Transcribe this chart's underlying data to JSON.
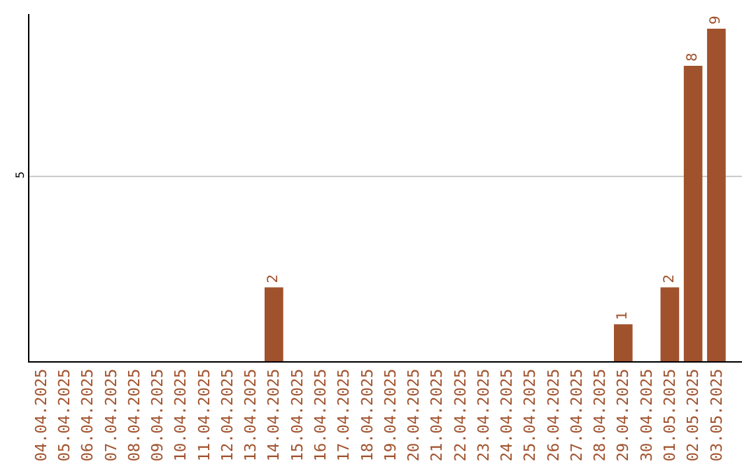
{
  "chart_data": {
    "type": "bar",
    "categories": [
      "04.04.2025",
      "05.04.2025",
      "06.04.2025",
      "07.04.2025",
      "08.04.2025",
      "09.04.2025",
      "10.04.2025",
      "11.04.2025",
      "12.04.2025",
      "13.04.2025",
      "14.04.2025",
      "15.04.2025",
      "16.04.2025",
      "17.04.2025",
      "18.04.2025",
      "19.04.2025",
      "20.04.2025",
      "21.04.2025",
      "22.04.2025",
      "23.04.2025",
      "24.04.2025",
      "25.04.2025",
      "26.04.2025",
      "27.04.2025",
      "28.04.2025",
      "29.04.2025",
      "30.04.2025",
      "01.05.2025",
      "02.05.2025",
      "03.05.2025"
    ],
    "values": [
      0,
      0,
      0,
      0,
      0,
      0,
      0,
      0,
      0,
      0,
      2,
      0,
      0,
      0,
      0,
      0,
      0,
      0,
      0,
      0,
      0,
      0,
      0,
      0,
      0,
      1,
      0,
      2,
      8,
      9
    ],
    "value_labels": [
      null,
      null,
      null,
      null,
      null,
      null,
      null,
      null,
      null,
      null,
      "2",
      null,
      null,
      null,
      null,
      null,
      null,
      null,
      null,
      null,
      null,
      null,
      null,
      null,
      null,
      "1",
      null,
      "2",
      "8",
      "9"
    ],
    "color": "#a0522d",
    "ylim": [
      0,
      9.4
    ],
    "yticks": [
      5
    ],
    "grid": "y",
    "legend": false
  }
}
